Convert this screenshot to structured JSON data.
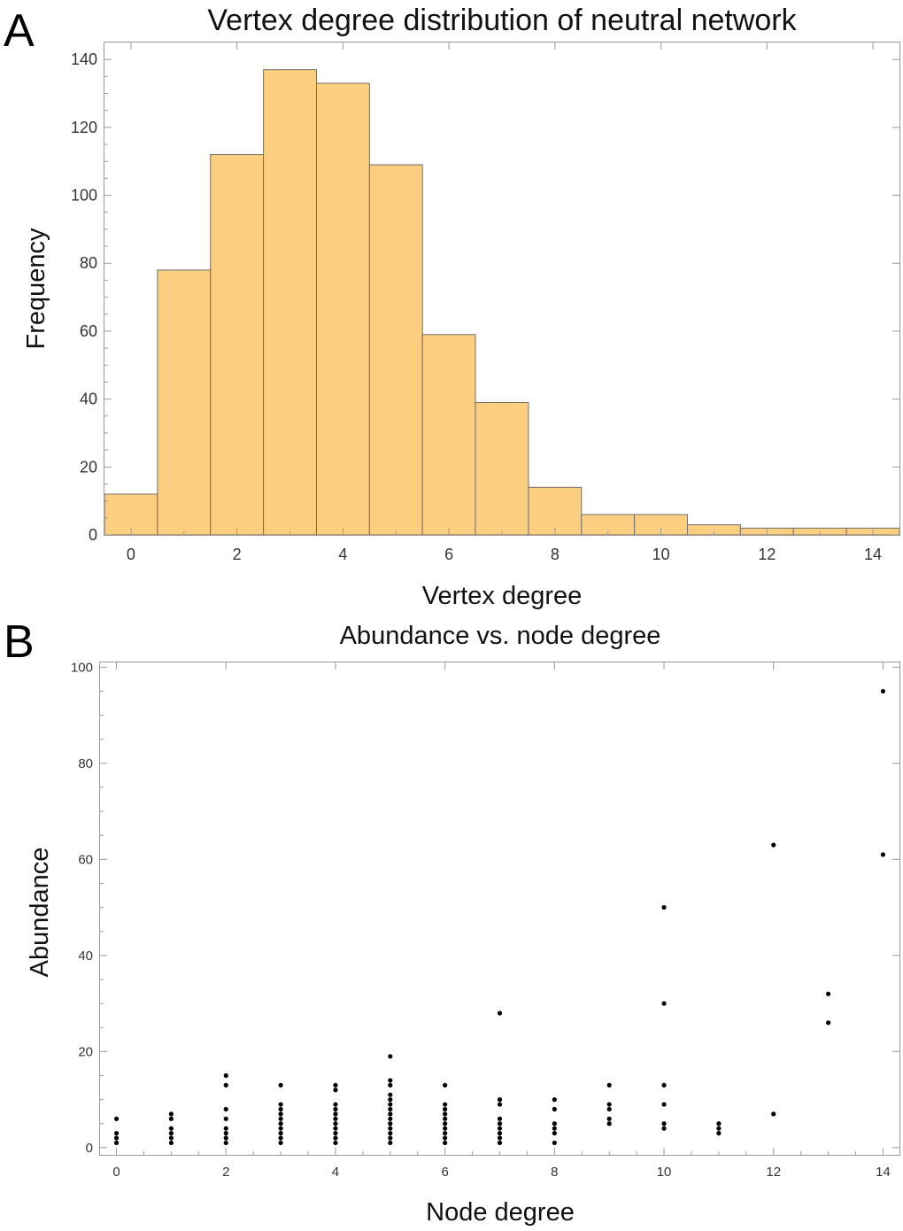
{
  "chart_data": [
    {
      "panel": "A",
      "type": "bar",
      "title": "Vertex degree distribution of neutral network",
      "xlabel": "Vertex degree",
      "ylabel": "Frequency",
      "categories": [
        0,
        1,
        2,
        3,
        4,
        5,
        6,
        7,
        8,
        9,
        10,
        11,
        12,
        13,
        14
      ],
      "values": [
        12,
        78,
        112,
        137,
        133,
        109,
        59,
        39,
        14,
        6,
        6,
        3,
        2,
        2,
        2
      ],
      "xlim": [
        -0.5,
        14.5
      ],
      "ylim": [
        0,
        145
      ],
      "xticks": [
        0,
        2,
        4,
        6,
        8,
        10,
        12,
        14
      ],
      "yticks": [
        0,
        20,
        40,
        60,
        80,
        100,
        120,
        140
      ],
      "bar_color": "#fccf80"
    },
    {
      "panel": "B",
      "type": "scatter",
      "title": "Abundance vs. node degree",
      "xlabel": "Node degree",
      "ylabel": "Abundance",
      "xlim": [
        -0.3,
        14.3
      ],
      "ylim": [
        -1.5,
        101
      ],
      "xticks": [
        0,
        2,
        4,
        6,
        8,
        10,
        12,
        14
      ],
      "yticks": [
        0,
        20,
        40,
        60,
        80,
        100
      ],
      "points": [
        [
          0,
          1
        ],
        [
          0,
          2
        ],
        [
          0,
          3
        ],
        [
          0,
          6
        ],
        [
          1,
          1
        ],
        [
          1,
          2
        ],
        [
          1,
          3
        ],
        [
          1,
          4
        ],
        [
          1,
          6
        ],
        [
          1,
          7
        ],
        [
          2,
          1
        ],
        [
          2,
          2
        ],
        [
          2,
          3
        ],
        [
          2,
          4
        ],
        [
          2,
          6
        ],
        [
          2,
          8
        ],
        [
          2,
          13
        ],
        [
          2,
          15
        ],
        [
          3,
          1
        ],
        [
          3,
          2
        ],
        [
          3,
          3
        ],
        [
          3,
          4
        ],
        [
          3,
          5
        ],
        [
          3,
          6
        ],
        [
          3,
          7
        ],
        [
          3,
          8
        ],
        [
          3,
          9
        ],
        [
          3,
          13
        ],
        [
          4,
          1
        ],
        [
          4,
          2
        ],
        [
          4,
          3
        ],
        [
          4,
          4
        ],
        [
          4,
          5
        ],
        [
          4,
          6
        ],
        [
          4,
          7
        ],
        [
          4,
          8
        ],
        [
          4,
          9
        ],
        [
          4,
          12
        ],
        [
          4,
          13
        ],
        [
          5,
          1
        ],
        [
          5,
          2
        ],
        [
          5,
          3
        ],
        [
          5,
          4
        ],
        [
          5,
          5
        ],
        [
          5,
          6
        ],
        [
          5,
          7
        ],
        [
          5,
          8
        ],
        [
          5,
          9
        ],
        [
          5,
          10
        ],
        [
          5,
          11
        ],
        [
          5,
          13
        ],
        [
          5,
          14
        ],
        [
          5,
          19
        ],
        [
          6,
          1
        ],
        [
          6,
          2
        ],
        [
          6,
          3
        ],
        [
          6,
          4
        ],
        [
          6,
          5
        ],
        [
          6,
          6
        ],
        [
          6,
          7
        ],
        [
          6,
          8
        ],
        [
          6,
          9
        ],
        [
          6,
          13
        ],
        [
          7,
          1
        ],
        [
          7,
          2
        ],
        [
          7,
          3
        ],
        [
          7,
          4
        ],
        [
          7,
          5
        ],
        [
          7,
          6
        ],
        [
          7,
          9
        ],
        [
          7,
          10
        ],
        [
          7,
          28
        ],
        [
          8,
          1
        ],
        [
          8,
          3
        ],
        [
          8,
          4
        ],
        [
          8,
          5
        ],
        [
          8,
          8
        ],
        [
          8,
          10
        ],
        [
          9,
          5
        ],
        [
          9,
          6
        ],
        [
          9,
          8
        ],
        [
          9,
          9
        ],
        [
          9,
          13
        ],
        [
          10,
          4
        ],
        [
          10,
          5
        ],
        [
          10,
          9
        ],
        [
          10,
          13
        ],
        [
          10,
          30
        ],
        [
          10,
          50
        ],
        [
          11,
          3
        ],
        [
          11,
          4
        ],
        [
          11,
          5
        ],
        [
          12,
          7
        ],
        [
          12,
          63
        ],
        [
          13,
          26
        ],
        [
          13,
          32
        ],
        [
          14,
          61
        ],
        [
          14,
          95
        ]
      ]
    }
  ],
  "panel_labels": {
    "a": "A",
    "b": "B"
  }
}
